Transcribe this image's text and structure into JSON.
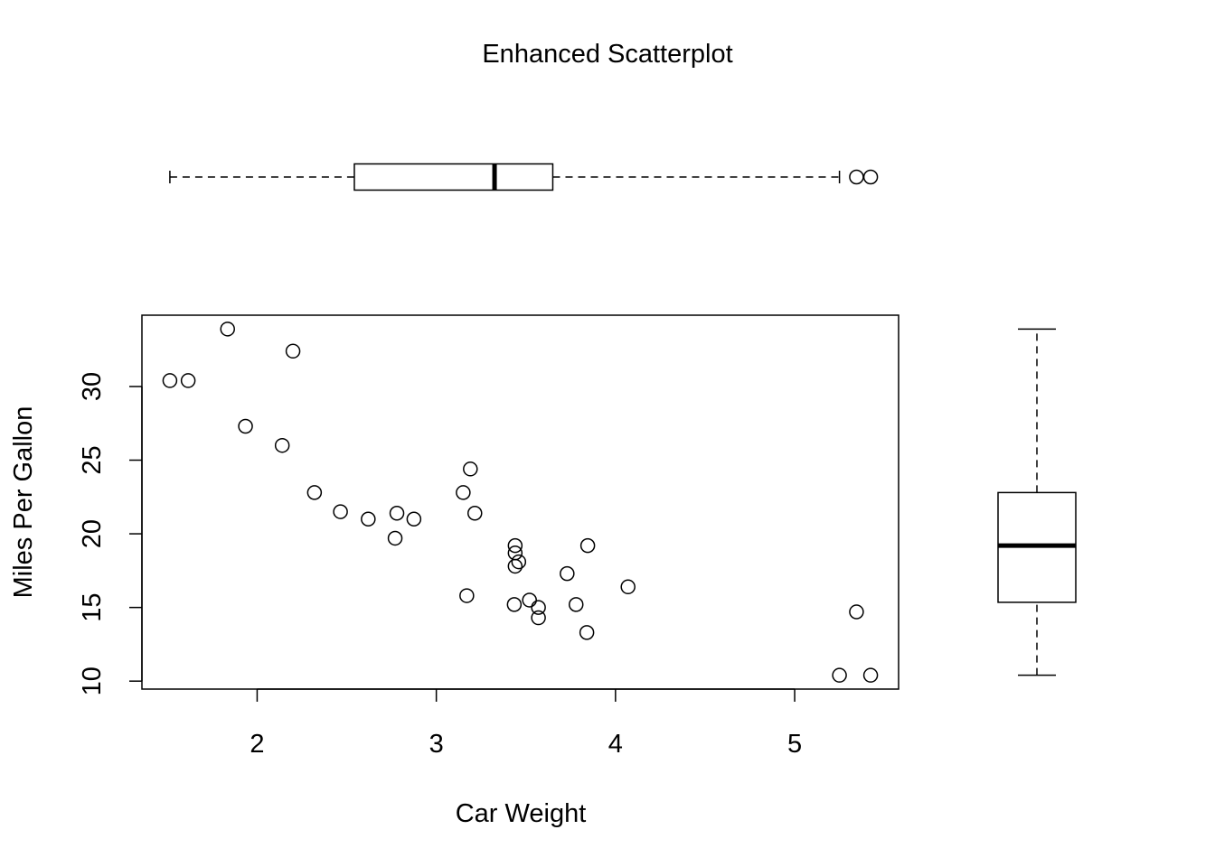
{
  "chart_data": {
    "type": "scatter",
    "title": "Enhanced Scatterplot",
    "xlabel": "Car Weight",
    "ylabel": "Miles Per Gallon",
    "xlim": [
      1.357,
      5.58
    ],
    "ylim": [
      9.46,
      34.84
    ],
    "xticks": [
      2,
      3,
      4,
      5
    ],
    "xtick_labels": [
      "2",
      "3",
      "4",
      "5"
    ],
    "yticks": [
      10,
      15,
      20,
      25,
      30
    ],
    "ytick_labels": [
      "10",
      "15",
      "20",
      "25",
      "30"
    ],
    "grid": false,
    "x": [
      2.62,
      2.875,
      2.32,
      3.215,
      3.44,
      3.46,
      3.57,
      3.19,
      3.15,
      3.44,
      3.44,
      4.07,
      3.73,
      3.78,
      5.25,
      5.424,
      5.345,
      2.2,
      1.615,
      1.835,
      2.465,
      3.52,
      3.435,
      3.84,
      3.845,
      1.935,
      2.14,
      1.513,
      3.17,
      2.77,
      3.57,
      2.78
    ],
    "y": [
      21.0,
      21.0,
      22.8,
      21.4,
      18.7,
      18.1,
      14.3,
      24.4,
      22.8,
      19.2,
      17.8,
      16.4,
      17.3,
      15.2,
      10.4,
      10.4,
      14.7,
      32.4,
      30.4,
      33.9,
      21.5,
      15.5,
      15.2,
      13.3,
      19.2,
      27.3,
      26.0,
      30.4,
      15.8,
      19.7,
      15.0,
      21.4
    ],
    "x_boxplot": {
      "min": 1.513,
      "q1": 2.5425,
      "median": 3.325,
      "q3": 3.65,
      "whisker_high": 5.25,
      "outliers": [
        5.345,
        5.424
      ]
    },
    "y_boxplot": {
      "min": 10.4,
      "q1": 15.35,
      "median": 19.2,
      "q3": 22.8,
      "max": 33.9,
      "outliers": []
    }
  }
}
